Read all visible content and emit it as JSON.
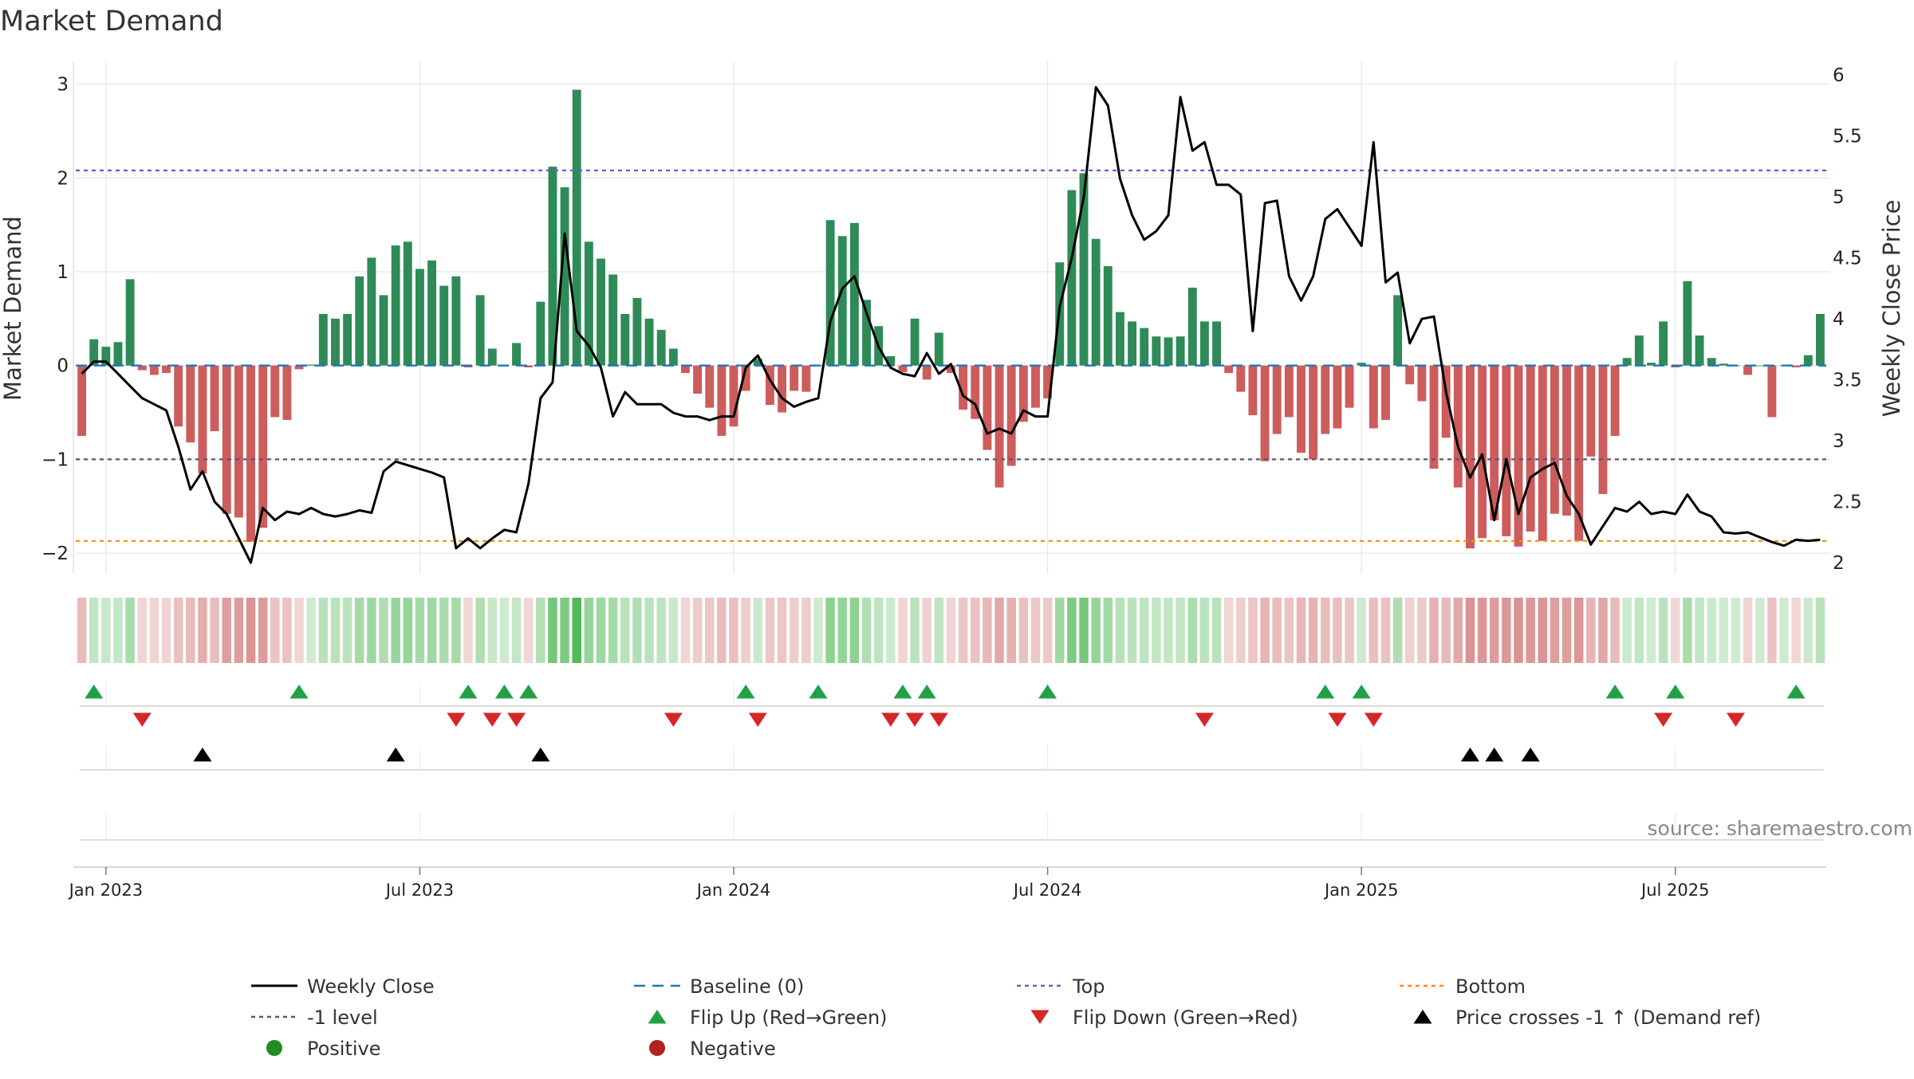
{
  "colors": {
    "positive_bar": "#2e8b57",
    "negative_bar": "#cd5c5c",
    "price_line": "#000000",
    "baseline": "#1f77b4",
    "top_line": "#6a5acd",
    "minus1_line": "#555577",
    "bottom_line": "#ff8c00",
    "flip_up": "#22a045",
    "flip_down": "#d62728",
    "cross": "#000000",
    "positive_dot": "#228b22",
    "negative_dot": "#b22222",
    "grid": "#e6e6e6"
  },
  "chart_data": {
    "type": "bar",
    "title": "Market Demand",
    "ylabel_left": "Market Demand",
    "ylabel_right": "Weekly Close Price",
    "source": "source: sharemaestro.com",
    "x_tick_labels": [
      "Jan 2023",
      "Jul 2023",
      "Jan 2024",
      "Jul 2024",
      "Jan 2025",
      "Jul 2025"
    ],
    "x_tick_weeks": [
      2,
      28,
      54,
      80,
      106,
      132
    ],
    "y_left_ticks": [
      "3",
      "2",
      "1",
      "0",
      "−1",
      "−2"
    ],
    "y_left_tick_values": [
      3,
      2,
      1,
      0,
      -1,
      -2
    ],
    "y_left_range": [
      -2.22,
      3.2
    ],
    "y_right_ticks": [
      "6",
      "5.5",
      "5",
      "4.5",
      "4",
      "3.5",
      "3",
      "2.5",
      "2"
    ],
    "y_right_tick_values": [
      6,
      5.5,
      5,
      4.5,
      4,
      3.5,
      3,
      2.5,
      2
    ],
    "y_right_range": [
      1.91,
      6.08
    ],
    "levels": {
      "top": 2.08,
      "minus1": -1.0,
      "bottom": -1.87,
      "baseline": 0
    },
    "demand": [
      -0.75,
      0.28,
      0.2,
      0.25,
      0.92,
      -0.05,
      -0.1,
      -0.08,
      -0.65,
      -0.82,
      -1.15,
      -0.7,
      -1.58,
      -1.62,
      -1.88,
      -1.73,
      -0.55,
      -0.58,
      -0.04,
      0.01,
      0.55,
      0.5,
      0.55,
      0.95,
      1.15,
      0.75,
      1.28,
      1.32,
      1.03,
      1.12,
      0.85,
      0.95,
      -0.02,
      0.75,
      0.18,
      0.0,
      0.24,
      -0.02,
      0.68,
      2.12,
      1.9,
      2.94,
      1.32,
      1.14,
      0.97,
      0.55,
      0.72,
      0.5,
      0.38,
      0.18,
      -0.08,
      -0.3,
      -0.45,
      -0.75,
      -0.65,
      -0.27,
      0.07,
      -0.42,
      -0.5,
      -0.27,
      -0.28,
      0.0,
      1.55,
      1.38,
      1.52,
      0.7,
      0.42,
      0.1,
      -0.07,
      0.5,
      -0.15,
      0.35,
      -0.08,
      -0.47,
      -0.57,
      -0.9,
      -1.3,
      -1.07,
      -0.6,
      -0.45,
      -0.35,
      1.1,
      1.87,
      2.05,
      1.35,
      1.06,
      0.57,
      0.47,
      0.4,
      0.31,
      0.3,
      0.31,
      0.83,
      0.47,
      0.47,
      -0.08,
      -0.28,
      -0.53,
      -1.02,
      -0.73,
      -0.55,
      -0.93,
      -1.0,
      -0.73,
      -0.67,
      -0.45,
      0.03,
      -0.67,
      -0.58,
      0.75,
      -0.2,
      -0.38,
      -1.1,
      -0.77,
      -1.3,
      -1.95,
      -1.84,
      -1.65,
      -1.82,
      -1.93,
      -1.77,
      -1.87,
      -1.58,
      -1.6,
      -1.87,
      -0.97,
      -1.37,
      -0.75,
      0.08,
      0.32,
      0.03,
      0.47,
      -0.02,
      0.9,
      0.32,
      0.08,
      0.02,
      0.0,
      -0.1,
      0.0,
      -0.55,
      0.0,
      -0.02,
      0.11,
      0.55
    ],
    "price": [
      3.55,
      3.65,
      3.65,
      3.55,
      3.45,
      3.35,
      3.3,
      3.25,
      2.95,
      2.6,
      2.75,
      2.5,
      2.4,
      2.2,
      2.0,
      2.45,
      2.35,
      2.42,
      2.4,
      2.45,
      2.4,
      2.38,
      2.4,
      2.43,
      2.41,
      2.75,
      2.83,
      2.8,
      2.77,
      2.74,
      2.7,
      2.12,
      2.2,
      2.12,
      2.2,
      2.27,
      2.25,
      2.65,
      3.35,
      3.48,
      4.7,
      3.9,
      3.78,
      3.6,
      3.2,
      3.4,
      3.3,
      3.3,
      3.3,
      3.23,
      3.2,
      3.2,
      3.17,
      3.2,
      3.2,
      3.6,
      3.7,
      3.5,
      3.35,
      3.28,
      3.32,
      3.35,
      3.98,
      4.25,
      4.35,
      4.05,
      3.77,
      3.6,
      3.55,
      3.53,
      3.72,
      3.55,
      3.63,
      3.37,
      3.3,
      3.06,
      3.1,
      3.06,
      3.25,
      3.2,
      3.2,
      4.1,
      4.5,
      5.0,
      5.9,
      5.75,
      5.15,
      4.85,
      4.65,
      4.72,
      4.85,
      5.82,
      5.38,
      5.45,
      5.1,
      5.1,
      5.02,
      3.9,
      4.95,
      4.97,
      4.35,
      4.15,
      4.35,
      4.82,
      4.9,
      4.75,
      4.6,
      5.45,
      4.3,
      4.38,
      3.8,
      4.0,
      4.02,
      3.4,
      2.95,
      2.7,
      2.89,
      2.35,
      2.85,
      2.4,
      2.7,
      2.77,
      2.82,
      2.55,
      2.4,
      2.15,
      2.3,
      2.45,
      2.42,
      2.5,
      2.4,
      2.42,
      2.4,
      2.56,
      2.42,
      2.38,
      2.25,
      2.24,
      2.25,
      2.21,
      2.17,
      2.14,
      2.19,
      2.18,
      2.19
    ],
    "flip_up_weeks": [
      1,
      18,
      32,
      35,
      37,
      55,
      61,
      68,
      70,
      80,
      103,
      106,
      127,
      132,
      142
    ],
    "flip_down_weeks": [
      5,
      31,
      34,
      36,
      49,
      56,
      67,
      69,
      71,
      93,
      104,
      107,
      131,
      137
    ],
    "cross_weeks": [
      10,
      26,
      38,
      115,
      117,
      120
    ],
    "legend": [
      {
        "key": "weekly-close",
        "label": "Weekly Close",
        "symbol": "line"
      },
      {
        "key": "baseline",
        "label": "Baseline (0)",
        "symbol": "dash"
      },
      {
        "key": "top",
        "label": "Top",
        "symbol": "dot-line-top"
      },
      {
        "key": "bottom",
        "label": "Bottom",
        "symbol": "dot-line-bottom"
      },
      {
        "key": "minus1",
        "label": "-1 level",
        "symbol": "dot-line-minus1"
      },
      {
        "key": "flip-up",
        "label": "Flip Up (Red→Green)",
        "symbol": "tri-up-green"
      },
      {
        "key": "flip-down",
        "label": "Flip Down (Green→Red)",
        "symbol": "tri-down-red"
      },
      {
        "key": "cross",
        "label": "Price crosses -1 ↑ (Demand ref)",
        "symbol": "tri-up-black"
      },
      {
        "key": "positive",
        "label": "Positive",
        "symbol": "dot-green"
      },
      {
        "key": "negative",
        "label": "Negative",
        "symbol": "dot-red"
      }
    ]
  }
}
